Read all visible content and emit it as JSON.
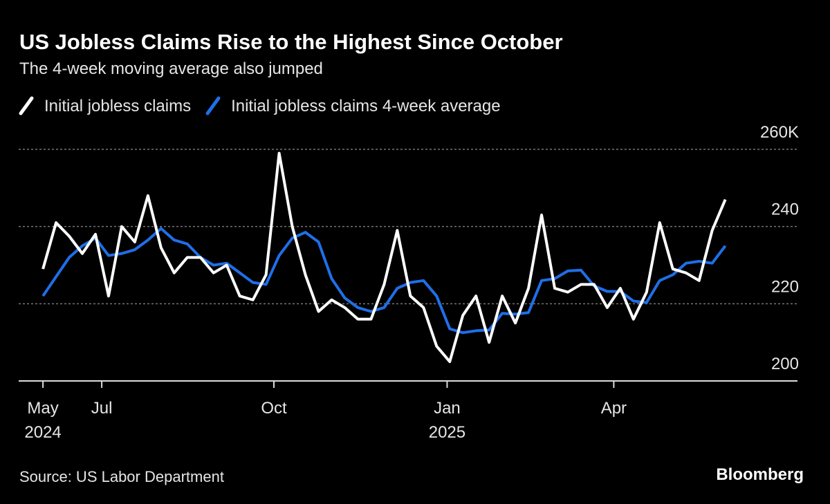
{
  "chart_data": {
    "type": "line",
    "title": "US Jobless Claims Rise to the Highest Since October",
    "subtitle": "The 4-week moving average also jumped",
    "source": "Source: US Labor Department",
    "brand": "Bloomberg",
    "x": [
      0,
      1,
      2,
      3,
      4,
      5,
      6,
      7,
      8,
      9,
      10,
      11,
      12,
      13,
      14,
      15,
      16,
      17,
      18,
      19,
      20,
      21,
      22,
      23,
      24,
      25,
      26,
      27,
      28,
      29,
      30,
      31,
      32,
      33,
      34,
      35,
      36,
      37,
      38,
      39,
      40,
      41,
      42,
      43,
      44,
      45,
      46,
      47,
      48,
      49,
      50,
      51,
      52
    ],
    "xlim": [
      -1.85,
      57.5
    ],
    "xticks": [
      {
        "value": 0,
        "label": "May"
      },
      {
        "value": 4.48,
        "label": "Jul"
      },
      {
        "value": 17.6,
        "label": "Oct"
      },
      {
        "value": 30.8,
        "label": "Jan"
      },
      {
        "value": 43.5,
        "label": "Apr"
      }
    ],
    "xticks_year": [
      {
        "value": 0,
        "label": "2024"
      },
      {
        "value": 30.8,
        "label": "2025"
      }
    ],
    "ylim": [
      200,
      260
    ],
    "yticks": [
      {
        "value": 260,
        "label": "260K"
      },
      240,
      220,
      200
    ],
    "grid": true,
    "series": [
      {
        "name": "Initial jobless claims",
        "color": "#ffffff",
        "values": [
          229,
          241,
          237.5,
          233,
          238,
          222,
          240,
          236,
          248,
          234.5,
          228,
          232,
          232,
          228,
          230,
          222,
          221,
          227.5,
          259,
          240,
          227.5,
          218,
          221,
          219,
          216,
          216,
          225,
          239,
          222,
          219,
          209,
          205,
          217,
          222,
          210,
          222,
          215,
          224,
          243,
          224,
          223,
          225,
          225,
          219,
          224,
          216,
          223,
          241,
          229,
          228,
          226,
          239,
          247
        ]
      },
      {
        "name": "Initial jobless claims 4-week average",
        "color": "#1f6fe8",
        "values": [
          222,
          227,
          232,
          235,
          237,
          232.5,
          233,
          234,
          236.5,
          239.5,
          236.5,
          235.5,
          232,
          230,
          230.5,
          228,
          225.5,
          225,
          232.5,
          237,
          238.5,
          236,
          226.5,
          221.5,
          219,
          218,
          219,
          224,
          225.5,
          226,
          222,
          213.5,
          212.5,
          213,
          213.2,
          217.5,
          217.3,
          217.7,
          226,
          226.5,
          228.5,
          228.7,
          224.6,
          223.2,
          223.2,
          220.7,
          220.3,
          226,
          227.5,
          230.5,
          231,
          230.5,
          235
        ]
      }
    ]
  }
}
